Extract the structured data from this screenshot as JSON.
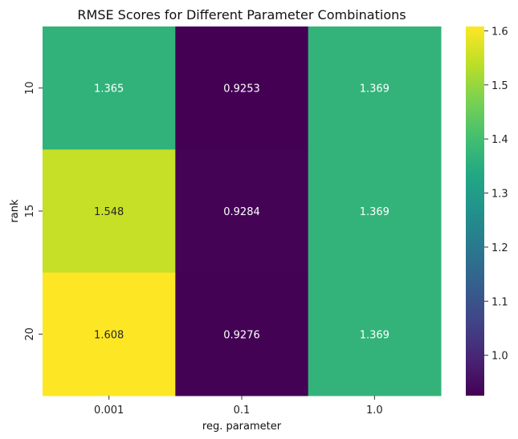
{
  "chart_data": {
    "type": "heatmap",
    "title": "RMSE Scores for Different Parameter Combinations",
    "xlabel": "reg. parameter",
    "ylabel": "rank",
    "x_categories": [
      "0.001",
      "0.1",
      "1.0"
    ],
    "y_categories": [
      "10",
      "15",
      "20"
    ],
    "values": [
      [
        1.365,
        0.9253,
        1.369
      ],
      [
        1.548,
        0.9284,
        1.369
      ],
      [
        1.608,
        0.9276,
        1.369
      ]
    ],
    "cell_labels": [
      [
        "1.365",
        "0.9253",
        "1.369"
      ],
      [
        "1.548",
        "0.9284",
        "1.369"
      ],
      [
        "1.608",
        "0.9276",
        "1.369"
      ]
    ],
    "colormap": "viridis",
    "color_range": [
      0.9253,
      1.608
    ],
    "colorbar_ticks": [
      "1.0",
      "1.1",
      "1.2",
      "1.3",
      "1.4",
      "1.5",
      "1.6"
    ],
    "colorbar_tick_values": [
      1.0,
      1.1,
      1.2,
      1.3,
      1.4,
      1.5,
      1.6
    ],
    "grid": false,
    "legend": "colorbar-right"
  }
}
